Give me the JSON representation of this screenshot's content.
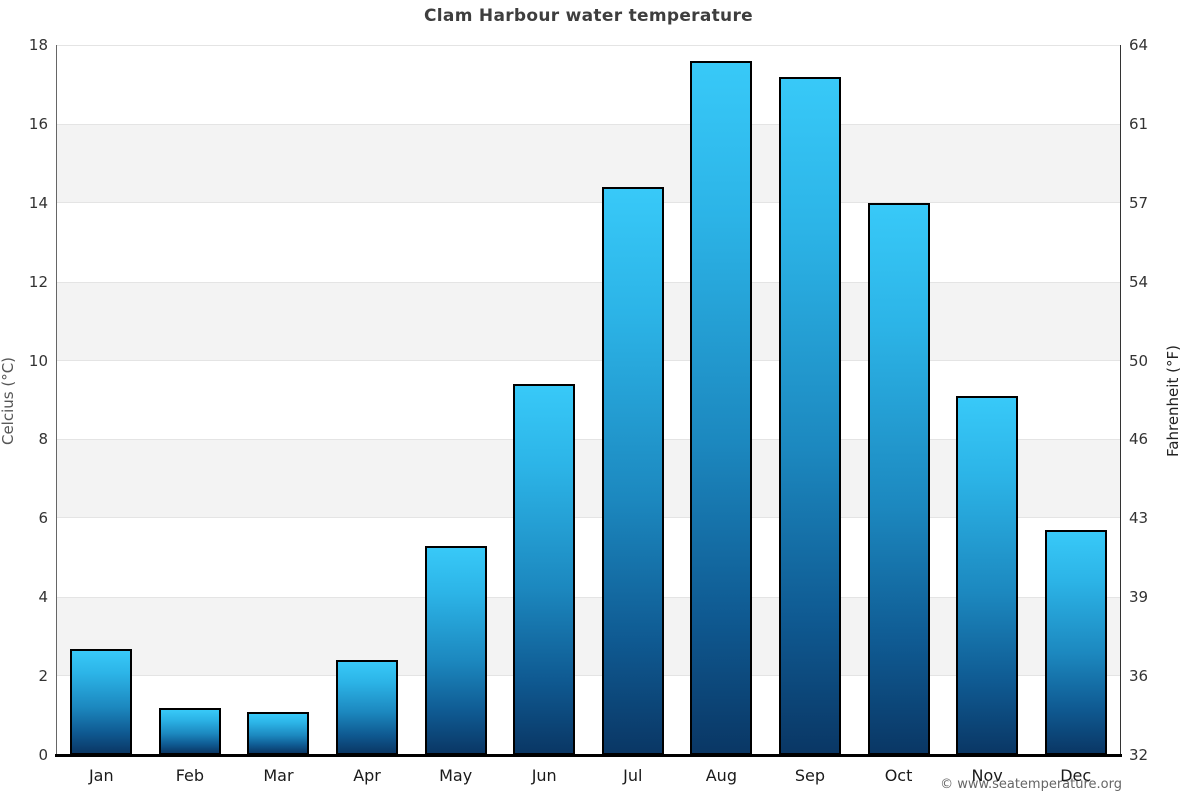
{
  "title": "Clam Harbour water temperature",
  "axes": {
    "left_label": "Celcius (°C)",
    "right_label": "Fahrenheit (°F)",
    "celsius_ticks": [
      "18",
      "16",
      "14",
      "12",
      "10",
      "8",
      "6",
      "4",
      "2",
      "0"
    ],
    "fahrenheit_ticks": [
      "64",
      "61",
      "57",
      "54",
      "50",
      "46",
      "43",
      "39",
      "36",
      "32"
    ]
  },
  "chart_data": {
    "type": "bar",
    "title": "Clam Harbour water temperature",
    "categories": [
      "Jan",
      "Feb",
      "Mar",
      "Apr",
      "May",
      "Jun",
      "Jul",
      "Aug",
      "Sep",
      "Oct",
      "Nov",
      "Dec"
    ],
    "values": [
      2.7,
      1.2,
      1.1,
      2.4,
      5.3,
      9.4,
      14.4,
      17.6,
      17.2,
      14.0,
      9.1,
      5.7
    ],
    "series_name": "Water temperature (°C)",
    "xlabel": "",
    "ylabel": "Celcius (°C)",
    "ylabel_right": "Fahrenheit (°F)",
    "ylim": [
      0,
      18
    ],
    "ylim_right": [
      32,
      64
    ],
    "grid": "alternating-horizontal-bands",
    "band_celsius_ranges": [
      [
        14,
        16
      ],
      [
        10,
        12
      ],
      [
        6,
        8
      ],
      [
        2,
        4
      ]
    ],
    "legend_position": "none",
    "colors": {
      "bar_gradient_top": "#38c9f8",
      "bar_gradient_bottom": "#0a3765",
      "bar_border": "#000000",
      "band_fill": "#f3f3f3",
      "gridline": "#e4e4e4",
      "axis_line": "#000000",
      "title_text": "#3e3e3e",
      "tick_text": "#333333"
    }
  },
  "footer": {
    "copyright": "© www.seatemperature.org"
  }
}
